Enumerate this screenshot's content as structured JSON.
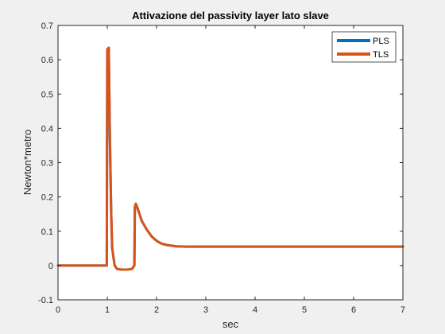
{
  "chart_data": {
    "type": "line",
    "title": "Attivazione del passivity layer lato slave",
    "xlabel": "sec",
    "ylabel": "Newton*metro",
    "xlim": [
      0,
      7
    ],
    "ylim": [
      -0.1,
      0.7
    ],
    "xticks": [
      0,
      1,
      2,
      3,
      4,
      5,
      6,
      7
    ],
    "yticks": [
      -0.1,
      0,
      0.1,
      0.2,
      0.3,
      0.4,
      0.5,
      0.6,
      0.7
    ],
    "xtick_labels": [
      "0",
      "1",
      "2",
      "3",
      "4",
      "5",
      "6",
      "7"
    ],
    "ytick_labels": [
      "-0.1",
      "0",
      "0.1",
      "0.2",
      "0.3",
      "0.4",
      "0.5",
      "0.6",
      "0.7"
    ],
    "grid": false,
    "legend_position": "top-right",
    "series": [
      {
        "name": "PLS",
        "color": "#0072bd",
        "x": [
          0,
          0.99,
          1.0,
          1.03,
          1.05,
          1.08,
          1.1,
          1.15,
          1.2,
          1.3,
          1.4,
          1.5,
          1.55,
          1.56,
          1.58,
          1.62,
          1.7,
          1.8,
          1.9,
          2.0,
          2.1,
          2.2,
          2.4,
          2.6,
          3.0,
          4.0,
          5.0,
          6.0,
          7.0
        ],
        "y": [
          0,
          0,
          0.63,
          0.635,
          0.4,
          0.15,
          0.05,
          0.0,
          -0.01,
          -0.012,
          -0.012,
          -0.01,
          0.0,
          0.17,
          0.18,
          0.165,
          0.13,
          0.105,
          0.085,
          0.072,
          0.064,
          0.06,
          0.056,
          0.055,
          0.055,
          0.055,
          0.055,
          0.055,
          0.055
        ]
      },
      {
        "name": "TLS",
        "color": "#d95319",
        "x": [
          0,
          0.99,
          1.0,
          1.03,
          1.05,
          1.08,
          1.1,
          1.15,
          1.2,
          1.3,
          1.4,
          1.5,
          1.55,
          1.56,
          1.58,
          1.62,
          1.7,
          1.8,
          1.9,
          2.0,
          2.1,
          2.2,
          2.4,
          2.6,
          3.0,
          4.0,
          5.0,
          6.0,
          7.0
        ],
        "y": [
          0,
          0,
          0.63,
          0.635,
          0.4,
          0.15,
          0.05,
          0.0,
          -0.01,
          -0.012,
          -0.012,
          -0.01,
          0.0,
          0.17,
          0.18,
          0.165,
          0.13,
          0.105,
          0.085,
          0.072,
          0.064,
          0.06,
          0.056,
          0.055,
          0.055,
          0.055,
          0.055,
          0.055,
          0.055
        ]
      }
    ]
  }
}
